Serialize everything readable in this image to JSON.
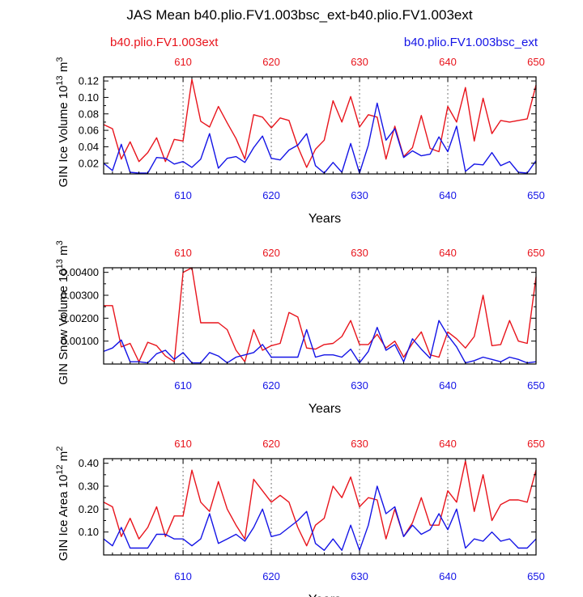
{
  "figure": {
    "title": "JAS Mean b40.plio.FV1.003bsc_ext-b40.plio.FV1.003ext",
    "legend_left": "b40.plio.FV1.003ext",
    "legend_right": "b40.plio.FV1.003bsc_ext",
    "colors": {
      "red": "#e8141c",
      "blue": "#1414e6",
      "grid": "#777777"
    }
  },
  "chart_data": [
    {
      "type": "line",
      "title": "",
      "xlabel": "Years",
      "ylabel": "GIN Ice Volume 10^13 m^3",
      "ylabel_parts": [
        "GIN Ice Volume 10",
        "13",
        " m",
        "3"
      ],
      "xlim": [
        601,
        650
      ],
      "ylim": [
        0.007,
        0.125
      ],
      "yticks": [
        0.02,
        0.04,
        0.06,
        0.08,
        0.1,
        0.12
      ],
      "ytick_labels": [
        "0.02",
        "0.04",
        "0.06",
        "0.08",
        "0.10",
        "0.12"
      ],
      "xticks": [
        610,
        620,
        630,
        640,
        650
      ],
      "xtick_labels": [
        "610",
        "620",
        "630",
        "640",
        "650"
      ],
      "grid_x": [
        610,
        620,
        630,
        640
      ],
      "x": [
        601,
        602,
        603,
        604,
        605,
        606,
        607,
        608,
        609,
        610,
        611,
        612,
        613,
        614,
        615,
        616,
        617,
        618,
        619,
        620,
        621,
        622,
        623,
        624,
        625,
        626,
        627,
        628,
        629,
        630,
        631,
        632,
        633,
        634,
        635,
        636,
        637,
        638,
        639,
        640,
        641,
        642,
        643,
        644,
        645,
        646,
        647,
        648,
        649,
        650
      ],
      "series": [
        {
          "name": "b40.plio.FV1.003ext",
          "color": "red",
          "values": [
            0.067,
            0.062,
            0.025,
            0.046,
            0.022,
            0.033,
            0.051,
            0.022,
            0.049,
            0.047,
            0.122,
            0.071,
            0.064,
            0.089,
            0.069,
            0.05,
            0.025,
            0.079,
            0.076,
            0.063,
            0.075,
            0.072,
            0.04,
            0.015,
            0.037,
            0.048,
            0.096,
            0.07,
            0.101,
            0.064,
            0.079,
            0.076,
            0.025,
            0.065,
            0.028,
            0.039,
            0.078,
            0.038,
            0.034,
            0.089,
            0.07,
            0.112,
            0.047,
            0.099,
            0.056,
            0.072,
            0.07,
            0.072,
            0.074,
            0.115
          ]
        },
        {
          "name": "b40.plio.FV1.003bsc_ext",
          "color": "blue",
          "values": [
            0.02,
            0.011,
            0.043,
            0.009,
            0.008,
            0.008,
            0.027,
            0.026,
            0.019,
            0.022,
            0.015,
            0.025,
            0.056,
            0.014,
            0.026,
            0.028,
            0.021,
            0.039,
            0.053,
            0.026,
            0.024,
            0.036,
            0.042,
            0.056,
            0.017,
            0.008,
            0.021,
            0.009,
            0.044,
            0.008,
            0.042,
            0.093,
            0.048,
            0.062,
            0.027,
            0.035,
            0.029,
            0.031,
            0.052,
            0.034,
            0.065,
            0.01,
            0.019,
            0.018,
            0.033,
            0.017,
            0.022,
            0.009,
            0.008,
            0.023
          ]
        }
      ]
    },
    {
      "type": "line",
      "title": "",
      "xlabel": "Years",
      "ylabel": "GIN Snow Volume 10^13 m^3",
      "ylabel_parts": [
        "GIN Snow Volume 10",
        "13",
        " m",
        "3"
      ],
      "xlim": [
        601,
        650
      ],
      "ylim": [
        0.0,
        0.0042
      ],
      "yticks": [
        0.001,
        0.002,
        0.003,
        0.004
      ],
      "ytick_labels": [
        "0.00100",
        "0.00200",
        "0.00300",
        "0.00400"
      ],
      "xticks": [
        610,
        620,
        630,
        640,
        650
      ],
      "xtick_labels": [
        "610",
        "620",
        "630",
        "640",
        "650"
      ],
      "grid_x": [
        610,
        620,
        630,
        640
      ],
      "x": [
        601,
        602,
        603,
        604,
        605,
        606,
        607,
        608,
        609,
        610,
        611,
        612,
        613,
        614,
        615,
        616,
        617,
        618,
        619,
        620,
        621,
        622,
        623,
        624,
        625,
        626,
        627,
        628,
        629,
        630,
        631,
        632,
        633,
        634,
        635,
        636,
        637,
        638,
        639,
        640,
        641,
        642,
        643,
        644,
        645,
        646,
        647,
        648,
        649,
        650
      ],
      "series": [
        {
          "name": "b40.plio.FV1.003ext",
          "color": "red",
          "values": [
            0.00255,
            0.00255,
            0.00075,
            0.0009,
            0.0001,
            0.00095,
            0.0008,
            0.00035,
            0.0001,
            0.004,
            0.0042,
            0.0018,
            0.0018,
            0.0018,
            0.0015,
            0.0006,
            0.0001,
            0.0015,
            0.0006,
            0.0008,
            0.0009,
            0.00225,
            0.00205,
            0.0007,
            0.00065,
            0.00085,
            0.0009,
            0.0012,
            0.0019,
            0.00085,
            0.00085,
            0.0013,
            0.0007,
            0.001,
            0.0003,
            0.0009,
            0.0014,
            0.0004,
            0.0003,
            0.0014,
            0.0011,
            0.0007,
            0.0012,
            0.003,
            0.0008,
            0.00085,
            0.0019,
            0.001,
            0.0009,
            0.0038
          ]
        },
        {
          "name": "b40.plio.FV1.003bsc_ext",
          "color": "blue",
          "values": [
            0.00055,
            0.0007,
            0.00105,
            0.0001,
            0.0001,
            5e-05,
            0.00045,
            0.0006,
            0.0002,
            0.0005,
            5e-05,
            5e-05,
            0.0005,
            0.00035,
            5e-05,
            0.0003,
            0.0004,
            0.0005,
            0.00085,
            0.0003,
            0.0003,
            0.0003,
            0.0003,
            0.0015,
            0.0003,
            0.0004,
            0.0004,
            0.0003,
            0.00065,
            5e-05,
            0.00055,
            0.0016,
            0.0006,
            0.00085,
            0.0001,
            0.0011,
            0.00065,
            0.00025,
            0.0019,
            0.00125,
            0.00075,
            5e-05,
            0.00015,
            0.0003,
            0.0002,
            0.0001,
            0.0003,
            0.0002,
            5e-05,
            0.0001
          ]
        }
      ]
    },
    {
      "type": "line",
      "title": "",
      "xlabel": "Years",
      "ylabel": "GIN Ice Area 10^12 m^2",
      "ylabel_parts": [
        "GIN Ice Area 10",
        "12",
        " m",
        "2"
      ],
      "xlim": [
        601,
        650
      ],
      "ylim": [
        0.0,
        0.42
      ],
      "yticks": [
        0.1,
        0.2,
        0.3,
        0.4
      ],
      "ytick_labels": [
        "0.10",
        "0.20",
        "0.30",
        "0.40"
      ],
      "xticks": [
        610,
        620,
        630,
        640,
        650
      ],
      "xtick_labels": [
        "610",
        "620",
        "630",
        "640",
        "650"
      ],
      "grid_x": [
        610,
        620,
        630,
        640
      ],
      "x": [
        601,
        602,
        603,
        604,
        605,
        606,
        607,
        608,
        609,
        610,
        611,
        612,
        613,
        614,
        615,
        616,
        617,
        618,
        619,
        620,
        621,
        622,
        623,
        624,
        625,
        626,
        627,
        628,
        629,
        630,
        631,
        632,
        633,
        634,
        635,
        636,
        637,
        638,
        639,
        640,
        641,
        642,
        643,
        644,
        645,
        646,
        647,
        648,
        649,
        650
      ],
      "series": [
        {
          "name": "b40.plio.FV1.003ext",
          "color": "red",
          "values": [
            0.23,
            0.21,
            0.08,
            0.16,
            0.07,
            0.12,
            0.21,
            0.08,
            0.17,
            0.17,
            0.37,
            0.23,
            0.19,
            0.32,
            0.2,
            0.13,
            0.07,
            0.33,
            0.28,
            0.23,
            0.26,
            0.23,
            0.12,
            0.04,
            0.13,
            0.16,
            0.3,
            0.25,
            0.34,
            0.21,
            0.25,
            0.24,
            0.07,
            0.2,
            0.08,
            0.14,
            0.25,
            0.13,
            0.13,
            0.28,
            0.23,
            0.41,
            0.19,
            0.35,
            0.15,
            0.22,
            0.24,
            0.24,
            0.23,
            0.37
          ]
        },
        {
          "name": "b40.plio.FV1.003bsc_ext",
          "color": "blue",
          "values": [
            0.07,
            0.04,
            0.12,
            0.03,
            0.03,
            0.03,
            0.09,
            0.09,
            0.07,
            0.07,
            0.04,
            0.07,
            0.18,
            0.05,
            0.07,
            0.09,
            0.06,
            0.12,
            0.2,
            0.08,
            0.09,
            0.12,
            0.15,
            0.19,
            0.05,
            0.02,
            0.07,
            0.02,
            0.13,
            0.02,
            0.13,
            0.3,
            0.18,
            0.21,
            0.08,
            0.13,
            0.09,
            0.11,
            0.18,
            0.11,
            0.2,
            0.03,
            0.07,
            0.06,
            0.1,
            0.06,
            0.07,
            0.03,
            0.03,
            0.07
          ]
        }
      ]
    }
  ]
}
